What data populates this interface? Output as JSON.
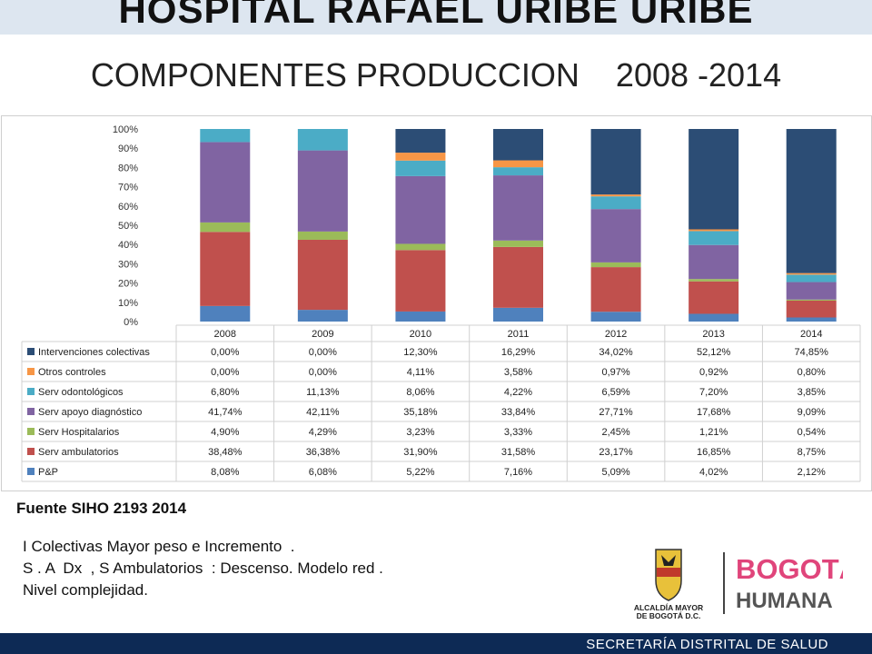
{
  "header": {
    "hospital": "HOSPITAL RAFAEL URIBE URIBE",
    "subtitle": "COMPONENTES PRODUCCION    2008 -2014"
  },
  "chart_data": {
    "type": "bar",
    "stacked": true,
    "percent_stacked": true,
    "categories": [
      "2008",
      "2009",
      "2010",
      "2011",
      "2012",
      "2013",
      "2014"
    ],
    "ylim": [
      0,
      100
    ],
    "yticks": [
      "0%",
      "10%",
      "20%",
      "30%",
      "40%",
      "50%",
      "60%",
      "70%",
      "80%",
      "90%",
      "100%"
    ],
    "legend_position": "data-table-below",
    "grid": false,
    "series": [
      {
        "name": "P&P",
        "color": "#4f81bd",
        "values": [
          8.08,
          6.08,
          5.22,
          7.16,
          5.09,
          4.02,
          2.12
        ],
        "labels": [
          "8,08%",
          "6,08%",
          "5,22%",
          "7,16%",
          "5,09%",
          "4,02%",
          "2,12%"
        ]
      },
      {
        "name": "Serv ambulatorios",
        "color": "#c0504d",
        "values": [
          38.48,
          36.38,
          31.9,
          31.58,
          23.17,
          16.85,
          8.75
        ],
        "labels": [
          "38,48%",
          "36,38%",
          "31,90%",
          "31,58%",
          "23,17%",
          "16,85%",
          "8,75%"
        ]
      },
      {
        "name": "Serv Hospitalarios",
        "color": "#9bbb59",
        "values": [
          4.9,
          4.29,
          3.23,
          3.33,
          2.45,
          1.21,
          0.54
        ],
        "labels": [
          "4,90%",
          "4,29%",
          "3,23%",
          "3,33%",
          "2,45%",
          "1,21%",
          "0,54%"
        ]
      },
      {
        "name": "Serv apoyo diagnóstico",
        "color": "#8064a2",
        "values": [
          41.74,
          42.11,
          35.18,
          33.84,
          27.71,
          17.68,
          9.09
        ],
        "labels": [
          "41,74%",
          "42,11%",
          "35,18%",
          "33,84%",
          "27,71%",
          "17,68%",
          "9,09%"
        ]
      },
      {
        "name": "Serv odontológicos",
        "color": "#4bacc6",
        "values": [
          6.8,
          11.13,
          8.06,
          4.22,
          6.59,
          7.2,
          3.85
        ],
        "labels": [
          "6,80%",
          "11,13%",
          "8,06%",
          "4,22%",
          "6,59%",
          "7,20%",
          "3,85%"
        ]
      },
      {
        "name": "Otros controles",
        "color": "#f79646",
        "values": [
          0.0,
          0.0,
          4.11,
          3.58,
          0.97,
          0.92,
          0.8
        ],
        "labels": [
          "0,00%",
          "0,00%",
          "4,11%",
          "3,58%",
          "0,97%",
          "0,92%",
          "0,80%"
        ]
      },
      {
        "name": "Intervenciones colectivas",
        "color": "#2c4d75",
        "values": [
          0.0,
          0.0,
          12.3,
          16.29,
          34.02,
          52.12,
          74.85
        ],
        "labels": [
          "0,00%",
          "0,00%",
          "12,30%",
          "16,29%",
          "34,02%",
          "52,12%",
          "74,85%"
        ]
      }
    ]
  },
  "source": "Fuente SIHO 2193 2014",
  "notes": [
    "I Colectivas Mayor peso e Incremento  .",
    "S . A  Dx  , S Ambulatorios  : Descenso. Modelo red .",
    "Nivel complejidad."
  ],
  "logos": {
    "alcaldia_line1": "ALCALDÍA MAYOR",
    "alcaldia_line2": "DE BOGOTÁ D.C.",
    "bogota_line1": "BOGOTÁ",
    "bogota_line2": "HUMANA"
  },
  "footer": {
    "text": "SECRETARÍA DISTRITAL DE SALUD",
    "color": "#0d2a55"
  }
}
